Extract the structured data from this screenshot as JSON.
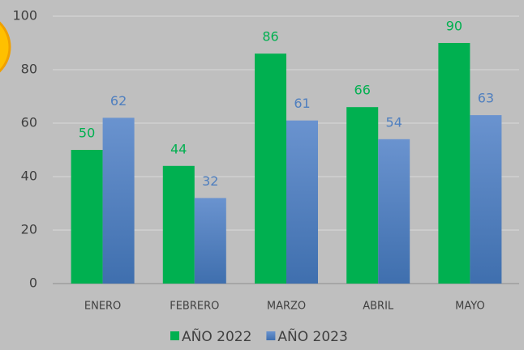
{
  "chart_data": {
    "type": "bar",
    "categories": [
      "ENERO",
      "FEBRERO",
      "MARZO",
      "ABRIL",
      "MAYO"
    ],
    "series": [
      {
        "name": "AÑO 2022",
        "color": "#00b050",
        "values": [
          50,
          44,
          86,
          66,
          90
        ]
      },
      {
        "name": "AÑO 2023",
        "color": "#4f7fbf",
        "values": [
          62,
          32,
          61,
          54,
          63
        ]
      }
    ],
    "ylim": [
      0,
      100
    ],
    "yticks": [
      0,
      20,
      40,
      60,
      80,
      100
    ],
    "grid": true,
    "legend": "bottom"
  }
}
